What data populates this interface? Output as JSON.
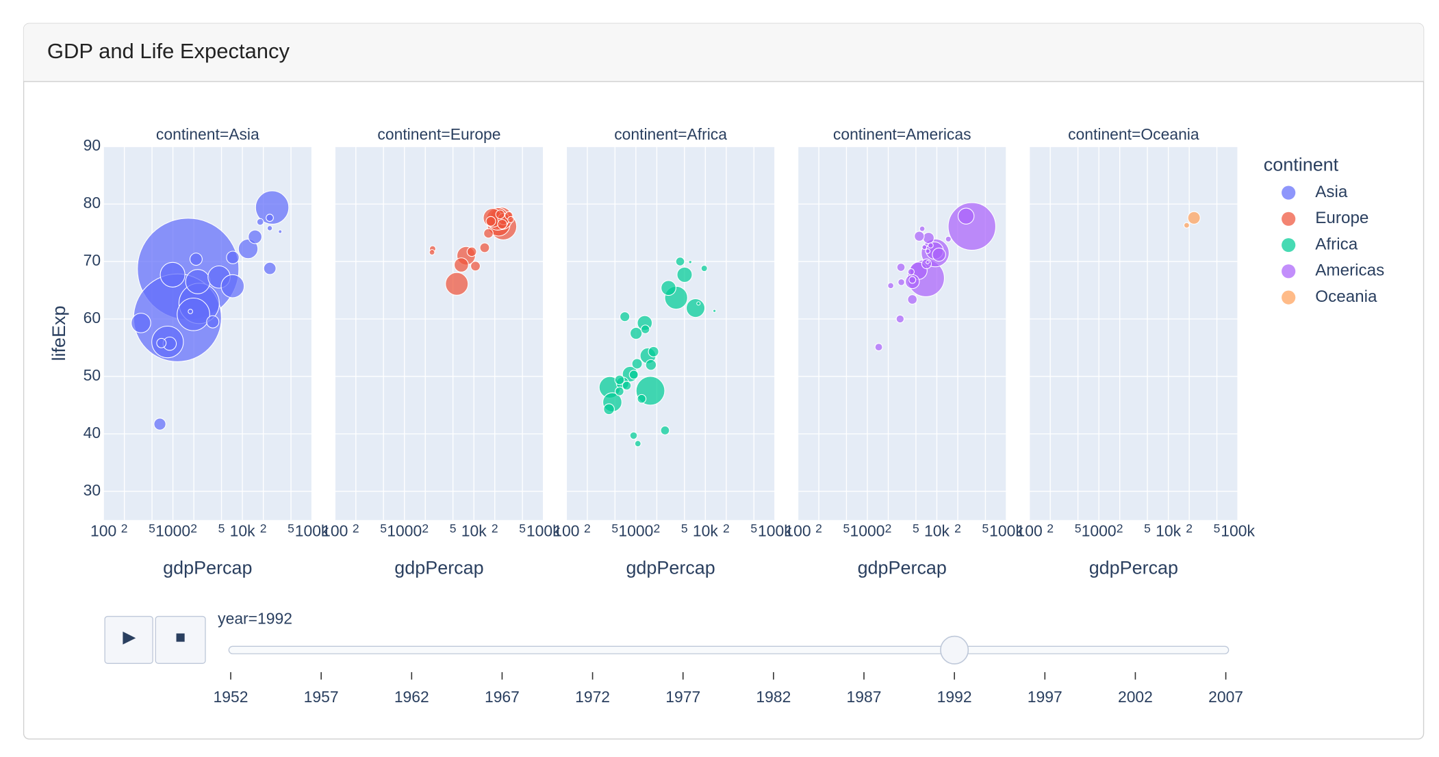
{
  "header": {
    "title": "GDP and Life Expectancy"
  },
  "legend": {
    "title": "continent",
    "position": "right"
  },
  "chart_data": [
    {
      "type": "scatter",
      "title": "continent=Asia",
      "x_label": "gdpPercap",
      "y_label": "lifeExp",
      "log_x": true,
      "grid": true,
      "xlim": [
        100,
        100000
      ],
      "xticks": [
        100,
        {
          "value": 200,
          "label": "2"
        },
        {
          "value": 500,
          "label": "5"
        },
        1000,
        {
          "value": 2000,
          "label": "2"
        },
        {
          "value": 5000,
          "label": "5"
        },
        {
          "value": 10000,
          "label": "10k"
        },
        {
          "value": 20000,
          "label": "2"
        },
        {
          "value": 50000,
          "label": "5"
        },
        {
          "value": 100000,
          "label": "100k"
        }
      ],
      "ylim": [
        25,
        90
      ],
      "yticks": [
        30,
        40,
        50,
        60,
        70,
        80,
        90
      ],
      "series": [
        {
          "name": "Asia",
          "color": "#636efa",
          "x": [
            1656,
            1164,
            2383,
            26825,
            1972,
            838,
            989,
            2279,
            4617,
            7235,
            12104,
            347,
            649,
            898,
            24841,
            7277,
            2154,
            683,
            3745,
            24757,
            15216,
            18051,
            24769,
            34933,
            1785
          ],
          "values": [
            68.7,
            60.2,
            62.7,
            79.4,
            60.8,
            56.0,
            67.7,
            66.5,
            67.3,
            65.7,
            72.2,
            59.3,
            41.7,
            55.7,
            68.8,
            70.7,
            70.4,
            55.8,
            59.5,
            77.6,
            74.3,
            76.9,
            75.8,
            75.2,
            61.3
          ],
          "size": [
            1165,
            872,
            184,
            125,
            120,
            113,
            69,
            67,
            56,
            60,
            43,
            43,
            16,
            20,
            17,
            18,
            17,
            10,
            17,
            6,
            21,
            5,
            3,
            1.4,
            2.3
          ]
        }
      ]
    },
    {
      "type": "scatter",
      "title": "continent=Europe",
      "x_label": "gdpPercap",
      "log_x": true,
      "grid": true,
      "xlim": [
        100,
        100000
      ],
      "xticks": [
        100,
        {
          "value": 200,
          "label": "2"
        },
        {
          "value": 500,
          "label": "5"
        },
        1000,
        {
          "value": 2000,
          "label": "2"
        },
        {
          "value": 5000,
          "label": "5"
        },
        {
          "value": 10000,
          "label": "10k"
        },
        {
          "value": 20000,
          "label": "2"
        },
        {
          "value": 50000,
          "label": "5"
        },
        {
          "value": 100000,
          "label": "100k"
        }
      ],
      "ylim": [
        25,
        90
      ],
      "yticks": [
        30,
        40,
        50,
        60,
        70,
        80,
        90
      ],
      "series": [
        {
          "name": "Europe",
          "color": "#ef553b",
          "x": [
            26505,
            5678,
            22705,
            24704,
            22014,
            18603,
            7739,
            6598,
            26791,
            16207,
            25576,
            17541,
            14297,
            10536,
            9325,
            2547,
            2497,
            23880,
            31871,
            33966
          ],
          "values": [
            76.1,
            66.1,
            76.4,
            77.5,
            77.4,
            77.6,
            71.0,
            69.4,
            77.4,
            74.9,
            76.5,
            77.0,
            72.4,
            69.2,
            71.7,
            72.2,
            71.6,
            78.2,
            78.0,
            77.3
          ],
          "size": [
            80.6,
            58,
            57.9,
            57.4,
            56.8,
            39.5,
            38.4,
            22.8,
            15.2,
            10,
            10,
            10.3,
            10.3,
            10.3,
            10,
            4.3,
            3.3,
            8.7,
            6.9,
            4.3
          ]
        }
      ]
    },
    {
      "type": "scatter",
      "title": "continent=Africa",
      "x_label": "gdpPercap",
      "log_x": true,
      "grid": true,
      "xlim": [
        100,
        100000
      ],
      "xticks": [
        100,
        {
          "value": 200,
          "label": "2"
        },
        {
          "value": 500,
          "label": "5"
        },
        1000,
        {
          "value": 2000,
          "label": "2"
        },
        {
          "value": 5000,
          "label": "5"
        },
        {
          "value": 10000,
          "label": "10k"
        },
        {
          "value": 20000,
          "label": "2"
        },
        {
          "value": 50000,
          "label": "5"
        },
        {
          "value": 100000,
          "label": "100k"
        }
      ],
      "ylim": [
        25,
        90
      ],
      "yticks": [
        30,
        40,
        50,
        60,
        70,
        80,
        90
      ],
      "series": [
        {
          "name": "Africa",
          "color": "#00cc96",
          "x": [
            1619,
            3795,
            422,
            458,
            7226,
            826,
            1493,
            1341,
            2948,
            5023,
            644,
            1007,
            410,
            1040,
            1793,
            1648,
            693,
            2628,
            582,
            739,
            581,
            932,
            1367,
            4333,
            1211,
            927,
            1068,
            9640,
            13522,
            6058,
            7954
          ],
          "values": [
            47.5,
            63.7,
            48.1,
            45.5,
            61.9,
            50.4,
            53.6,
            59.3,
            65.4,
            67.7,
            48.8,
            57.5,
            44.3,
            52.2,
            54.3,
            52.0,
            60.4,
            40.6,
            49.4,
            48.4,
            47.4,
            50.3,
            58.2,
            70.0,
            46.1,
            39.7,
            38.3,
            68.8,
            61.4,
            69.9,
            62.7
          ],
          "size": [
            93,
            59,
            52,
            41,
            39,
            27,
            28,
            25,
            25,
            26,
            18,
            16,
            13,
            12,
            12,
            12.8,
            10.7,
            8.7,
            10,
            8.4,
            8.4,
            8.9,
            8.3,
            8.5,
            8.4,
            6.1,
            4.3,
            4.4,
            1,
            1.1,
            1.3
          ]
        }
      ]
    },
    {
      "type": "scatter",
      "title": "continent=Americas",
      "x_label": "gdpPercap",
      "log_x": true,
      "grid": true,
      "xlim": [
        100,
        100000
      ],
      "xticks": [
        100,
        {
          "value": 200,
          "label": "2"
        },
        {
          "value": 500,
          "label": "5"
        },
        1000,
        {
          "value": 2000,
          "label": "2"
        },
        {
          "value": 5000,
          "label": "5"
        },
        {
          "value": 10000,
          "label": "10k"
        },
        {
          "value": 20000,
          "label": "2"
        },
        {
          "value": 50000,
          "label": "5"
        },
        {
          "value": 100000,
          "label": "100k"
        }
      ],
      "ylim": [
        25,
        90
      ],
      "yticks": [
        30,
        40,
        50,
        60,
        70,
        80,
        90
      ],
      "series": [
        {
          "name": "Americas",
          "color": "#ab63fa",
          "x": [
            32004,
            6950,
            9472,
            5445,
            9308,
            26343,
            4446,
            10733,
            7596,
            5593,
            7104,
            4439,
            1457,
            2962,
            3044,
            3082,
            4444,
            2170,
            4258,
            6160,
            14641,
            7404,
            8137,
            6619,
            7370
          ],
          "values": [
            76.1,
            67.1,
            71.5,
            68.4,
            71.9,
            77.9,
            66.5,
            71.2,
            74.1,
            74.4,
            69.6,
            63.4,
            55.1,
            60.0,
            69.0,
            66.4,
            66.8,
            65.8,
            68.2,
            75.7,
            73.9,
            71.8,
            72.8,
            72.5,
            69.9
          ],
          "size": [
            256,
            155,
            88,
            34,
            34,
            29,
            22,
            20,
            14,
            11,
            10.7,
            10,
            6.3,
            6.9,
            7.4,
            5,
            5.3,
            4,
            4.5,
            3.2,
            3.6,
            2.4,
            3.1,
            2.5,
            1.2
          ]
        }
      ]
    },
    {
      "type": "scatter",
      "title": "continent=Oceania",
      "x_label": "gdpPercap",
      "log_x": true,
      "grid": true,
      "xlim": [
        100,
        100000
      ],
      "xticks": [
        100,
        {
          "value": 200,
          "label": "2"
        },
        {
          "value": 500,
          "label": "5"
        },
        1000,
        {
          "value": 2000,
          "label": "2"
        },
        {
          "value": 5000,
          "label": "5"
        },
        {
          "value": 10000,
          "label": "10k"
        },
        {
          "value": 20000,
          "label": "2"
        },
        {
          "value": 50000,
          "label": "5"
        },
        {
          "value": 100000,
          "label": "100k"
        }
      ],
      "ylim": [
        25,
        90
      ],
      "yticks": [
        30,
        40,
        50,
        60,
        70,
        80,
        90
      ],
      "series": [
        {
          "name": "Oceania",
          "color": "#ffa15a",
          "x": [
            23425,
            18363
          ],
          "values": [
            77.6,
            76.3
          ],
          "size": [
            17.5,
            3.4
          ]
        }
      ]
    }
  ],
  "slider": {
    "currentvalue": "year=1992",
    "active": 1992,
    "steps": [
      1952,
      1957,
      1962,
      1967,
      1972,
      1977,
      1982,
      1987,
      1992,
      1997,
      2002,
      2007
    ]
  }
}
